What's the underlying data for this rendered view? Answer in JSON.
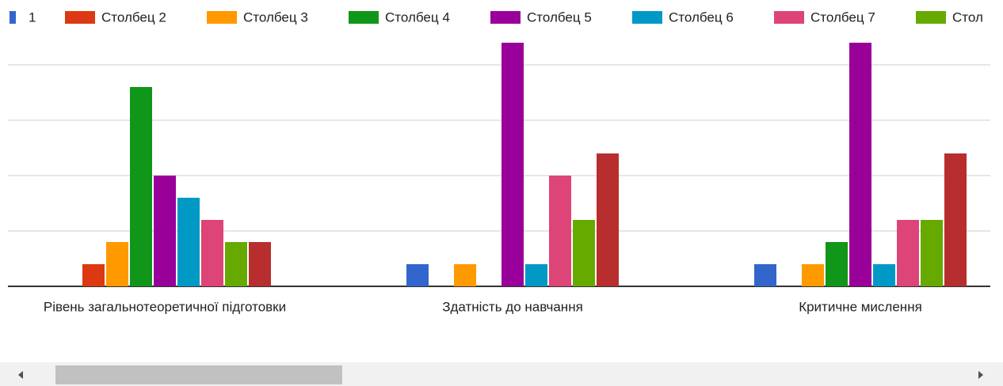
{
  "chart_data": {
    "type": "bar",
    "categories": [
      "Рівень загальнотеоретичної підготовки",
      "Здатність до навчання",
      "Критичне мислення"
    ],
    "series": [
      {
        "name": "1",
        "color": "#3366cc",
        "values": [
          0,
          1,
          1
        ]
      },
      {
        "name": "Столбец 2",
        "color": "#dc3912",
        "values": [
          1,
          0,
          0
        ]
      },
      {
        "name": "Столбец 3",
        "color": "#ff9900",
        "values": [
          2,
          1,
          1
        ]
      },
      {
        "name": "Столбец 4",
        "color": "#109618",
        "values": [
          9,
          0,
          2
        ]
      },
      {
        "name": "Столбец 5",
        "color": "#990099",
        "values": [
          5,
          11,
          11
        ]
      },
      {
        "name": "Столбец 6",
        "color": "#0099c6",
        "values": [
          4,
          1,
          1
        ]
      },
      {
        "name": "Столбец 7",
        "color": "#dd4477",
        "values": [
          3,
          5,
          3
        ]
      },
      {
        "name": "Стол",
        "color": "#66aa00",
        "values": [
          2,
          3,
          3
        ]
      },
      {
        "color": "#b82e2e",
        "values": [
          2,
          6,
          6
        ]
      }
    ],
    "ylim": [
      0,
      11.25
    ],
    "yticks": [
      0,
      2.5,
      5,
      7.5,
      10
    ],
    "grid": true,
    "legend": "top"
  }
}
